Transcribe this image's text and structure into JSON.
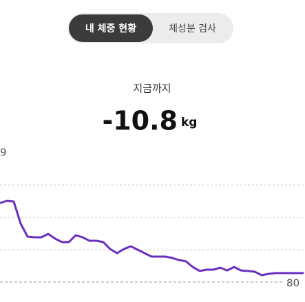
{
  "tabs": [
    {
      "label": "내 체중 현황",
      "active": true
    },
    {
      "label": "체성분 검사",
      "active": false
    }
  ],
  "summary": {
    "label": "지금까지",
    "value": "-10.8",
    "unit": "kg"
  },
  "chart_data": {
    "type": "line",
    "series": [
      {
        "color": "#6a2fc0",
        "values": [
          85.5,
          85.65,
          85.6,
          84.07,
          83.16,
          83.11,
          83.11,
          83.35,
          83.02,
          82.78,
          82.78,
          83.26,
          83.11,
          82.87,
          82.87,
          82.78,
          82.3,
          82.01,
          82.3,
          82.49,
          82.25,
          82.01,
          81.77,
          81.77,
          81.77,
          81.68,
          81.53,
          81.44,
          81.05,
          80.77,
          80.86,
          80.86,
          81.0,
          80.81,
          81.05,
          80.81,
          80.77,
          80.72,
          80.48,
          80.57,
          80.62,
          80.62,
          80.62,
          80.62,
          80.62
        ]
      }
    ],
    "ylim": [
      80,
      89
    ],
    "yticks": [
      80,
      {
        "value": 89,
        "label": "9"
      }
    ],
    "gridlines": [
      82.25,
      84.5,
      86.75
    ]
  }
}
